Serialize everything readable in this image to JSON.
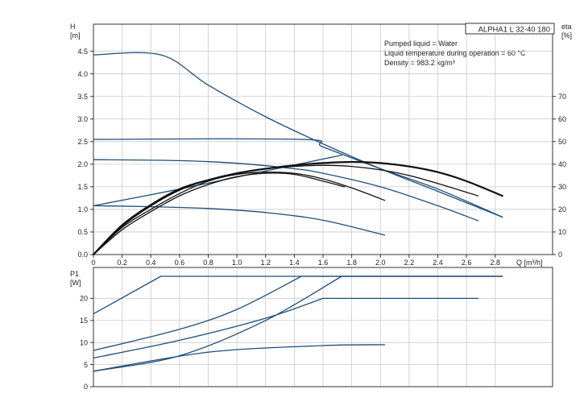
{
  "colors": {
    "grid": "#c9c9c9",
    "axis": "#333333",
    "pump_curve": "#1f4e79",
    "efficiency": "#111111",
    "text": "#222222"
  },
  "chart_data": [
    {
      "type": "line",
      "title": "ALPHA1 L 32-40 180",
      "annotations": [
        "Pumped liquid = Water",
        "Liquid temperature during operation = 60 °C",
        "Density = 983.2 kg/m³"
      ],
      "xlabel": "Q [m³/h]",
      "ylabel": [
        "H",
        "[m]"
      ],
      "y2label": [
        "eta",
        "[%]"
      ],
      "xlim": [
        0,
        3.2
      ],
      "ylim": [
        0,
        5.1
      ],
      "y2lim": [
        0,
        102
      ],
      "x_ticks": [
        "0",
        "0.2",
        "0.4",
        "0.6",
        "0.8",
        "1.0",
        "1.2",
        "1.4",
        "1.6",
        "1.8",
        "2.0",
        "2.2",
        "2.4",
        "2.6",
        "2.8"
      ],
      "x_tick_values": [
        0,
        0.2,
        0.4,
        0.6,
        0.8,
        1.0,
        1.2,
        1.4,
        1.6,
        1.8,
        2.0,
        2.2,
        2.4,
        2.6,
        2.8
      ],
      "y_ticks": [
        "0.0",
        "0.5",
        "1.0",
        "1.5",
        "2.0",
        "2.5",
        "3.0",
        "3.5",
        "4.0",
        "4.5"
      ],
      "y_tick_values": [
        0,
        0.5,
        1.0,
        1.5,
        2.0,
        2.5,
        3.0,
        3.5,
        4.0,
        4.5
      ],
      "y2_ticks": [
        "0",
        "10",
        "20",
        "30",
        "40",
        "50",
        "60",
        "70"
      ],
      "y2_tick_values": [
        0,
        10,
        20,
        30,
        40,
        50,
        60,
        70
      ],
      "grid": true,
      "series": [
        {
          "kind": "head",
          "x": [
            0,
            0.47,
            0.8,
            1.2,
            1.6,
            2.0,
            2.4,
            2.85
          ],
          "y": [
            4.42,
            4.42,
            3.75,
            3.05,
            2.45,
            1.9,
            1.4,
            0.83
          ]
        },
        {
          "kind": "head",
          "x": [
            0,
            1.45,
            1.6,
            2.0,
            2.4,
            2.85
          ],
          "y": [
            2.55,
            2.55,
            2.38,
            1.9,
            1.45,
            0.83
          ]
        },
        {
          "kind": "head",
          "x": [
            0,
            0.6,
            1.0,
            1.4,
            1.6,
            2.0,
            2.4,
            2.68
          ],
          "y": [
            2.1,
            2.08,
            2.02,
            1.9,
            1.8,
            1.5,
            1.08,
            0.75
          ]
        },
        {
          "kind": "head",
          "x": [
            0,
            0.4,
            0.8,
            1.2,
            1.6,
            2.03
          ],
          "y": [
            1.08,
            1.06,
            1.02,
            0.93,
            0.76,
            0.43
          ]
        },
        {
          "kind": "head",
          "x": [
            0,
            0.6,
            1.2,
            1.73
          ],
          "y": [
            1.08,
            1.45,
            1.85,
            2.2
          ]
        },
        {
          "kind": "efficiency",
          "x": [
            0,
            0.2,
            0.4,
            0.6,
            0.8,
            1.0,
            1.2,
            1.4,
            1.6,
            1.8,
            2.0,
            2.2,
            2.4,
            2.6,
            2.85
          ],
          "y": [
            0,
            13,
            22,
            29,
            33,
            36,
            38,
            39.5,
            40.5,
            41,
            40.5,
            39,
            36.5,
            32.5,
            26
          ]
        },
        {
          "kind": "efficiency",
          "x": [
            0,
            0.2,
            0.4,
            0.6,
            0.8,
            1.0,
            1.2,
            1.4,
            1.6,
            1.8,
            2.0,
            2.2,
            2.4,
            2.68
          ],
          "y": [
            0,
            12.5,
            21.5,
            28.5,
            33,
            36,
            38,
            39,
            39.5,
            39,
            37.5,
            35,
            31.5,
            26
          ]
        },
        {
          "kind": "efficiency",
          "x": [
            0,
            0.2,
            0.4,
            0.6,
            0.8,
            1.0,
            1.2,
            1.4,
            1.6,
            1.8,
            2.03
          ],
          "y": [
            0,
            12,
            20,
            27,
            32.5,
            35.5,
            36.5,
            36,
            33.5,
            29.5,
            24
          ]
        },
        {
          "kind": "efficiency",
          "x": [
            0,
            0.2,
            0.4,
            0.6,
            0.8,
            1.0,
            1.2,
            1.4,
            1.6,
            1.75
          ],
          "y": [
            0,
            11,
            19,
            26,
            31,
            34.5,
            36,
            35.5,
            32.5,
            30
          ]
        }
      ]
    },
    {
      "type": "line",
      "ylabel": [
        "P1",
        "[W]"
      ],
      "xlim": [
        0,
        3.2
      ],
      "ylim": [
        0,
        27
      ],
      "y_ticks": [
        "0",
        "5",
        "10",
        "15",
        "20"
      ],
      "y_tick_values": [
        0,
        5,
        10,
        15,
        20
      ],
      "grid": true,
      "series": [
        {
          "x": [
            0,
            0.47,
            2.85
          ],
          "y": [
            16.5,
            25,
            25
          ]
        },
        {
          "x": [
            0,
            0.6,
            1.0,
            1.45,
            2.85
          ],
          "y": [
            8.2,
            13,
            17.5,
            25,
            25
          ]
        },
        {
          "x": [
            0,
            0.6,
            1.2,
            1.6,
            2.68
          ],
          "y": [
            6.5,
            10.5,
            15.5,
            20,
            20
          ]
        },
        {
          "x": [
            0,
            0.6,
            1.2,
            1.73,
            2.85
          ],
          "y": [
            3.5,
            7,
            15,
            25,
            25
          ]
        },
        {
          "x": [
            0,
            0.8,
            1.6,
            2.03
          ],
          "y": [
            3.5,
            7.8,
            9.3,
            9.5
          ]
        }
      ]
    }
  ]
}
